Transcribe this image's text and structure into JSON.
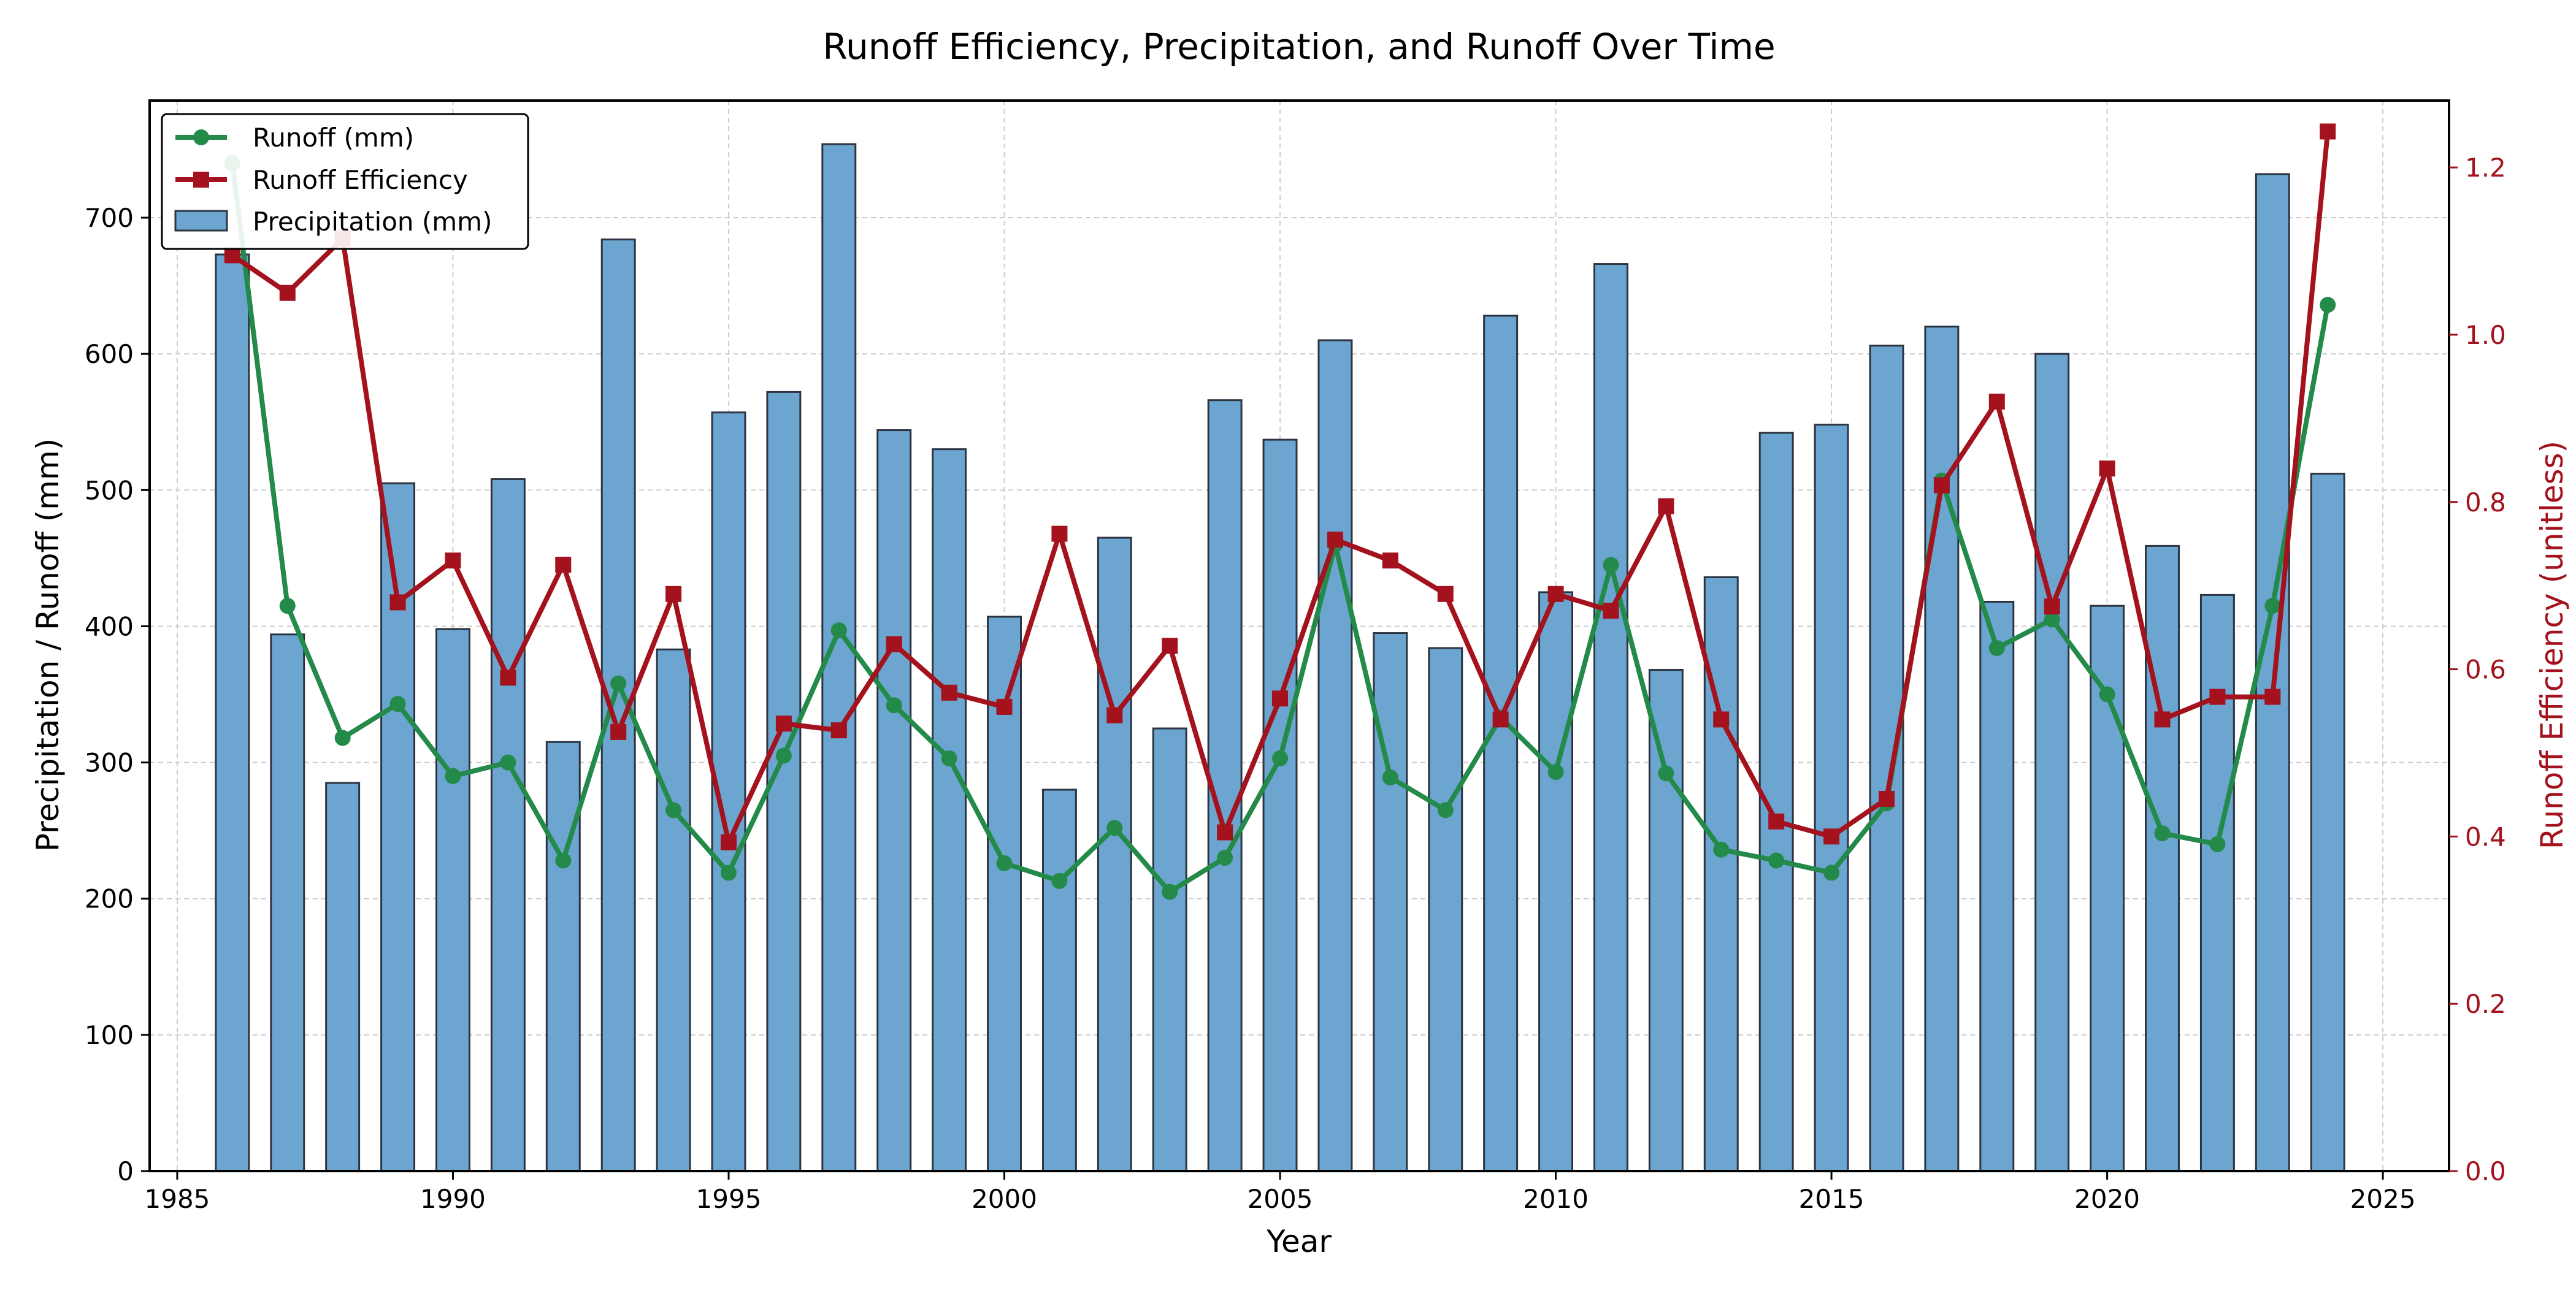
{
  "chart_data": {
    "type": "bar",
    "title": "Runoff Efficiency, Precipitation, and Runoff Over Time",
    "xlabel": "Year",
    "ylabel": "Precipitation / Runoff (mm)",
    "y2label": "Runoff Efficiency (unitless)",
    "xlim": [
      1984.5,
      2026.2
    ],
    "ylim": [
      0,
      786
    ],
    "y2lim": [
      0,
      1.28
    ],
    "xticks": [
      1985,
      1990,
      1995,
      2000,
      2005,
      2010,
      2015,
      2020,
      2025
    ],
    "yticks": [
      0,
      100,
      200,
      300,
      400,
      500,
      600,
      700
    ],
    "y2ticks": [
      0.0,
      0.2,
      0.4,
      0.6,
      0.8,
      1.0,
      1.2
    ],
    "grid": true,
    "legend_position": "top-left",
    "x": [
      1986,
      1987,
      1988,
      1989,
      1990,
      1991,
      1992,
      1993,
      1994,
      1995,
      1996,
      1997,
      1998,
      1999,
      2000,
      2001,
      2002,
      2003,
      2004,
      2005,
      2006,
      2007,
      2008,
      2009,
      2010,
      2011,
      2012,
      2013,
      2014,
      2015,
      2016,
      2017,
      2018,
      2019,
      2020,
      2021,
      2022,
      2023,
      2024
    ],
    "series": [
      {
        "name": "Precipitation (mm)",
        "type": "bar",
        "axis": "left",
        "color": "#6ba5d0",
        "values": [
          673,
          394,
          285,
          505,
          398,
          508,
          315,
          684,
          383,
          557,
          572,
          754,
          544,
          530,
          407,
          280,
          465,
          325,
          566,
          537,
          610,
          395,
          384,
          628,
          425,
          666,
          368,
          436,
          542,
          548,
          606,
          620,
          418,
          600,
          415,
          459,
          423,
          732,
          512
        ]
      },
      {
        "name": "Runoff (mm)",
        "type": "line",
        "axis": "left",
        "marker": "circle",
        "color": "#238a4a",
        "values": [
          740,
          415,
          318,
          343,
          290,
          300,
          228,
          358,
          265,
          219,
          305,
          397,
          342,
          303,
          226,
          213,
          252,
          205,
          230,
          303,
          460,
          289,
          265,
          333,
          293,
          445,
          292,
          236,
          228,
          219,
          270,
          507,
          384,
          405,
          350,
          248,
          240,
          415,
          636
        ]
      },
      {
        "name": "Runoff Efficiency",
        "type": "line",
        "axis": "right",
        "marker": "square",
        "color": "#a3121d",
        "values": [
          1.095,
          1.05,
          1.115,
          0.68,
          0.73,
          0.59,
          0.725,
          0.525,
          0.69,
          0.393,
          0.535,
          0.527,
          0.63,
          0.572,
          0.555,
          0.762,
          0.545,
          0.628,
          0.405,
          0.565,
          0.755,
          0.73,
          0.69,
          0.54,
          0.69,
          0.67,
          0.795,
          0.54,
          0.418,
          0.4,
          0.445,
          0.82,
          0.92,
          0.675,
          0.84,
          0.54,
          0.567,
          0.567,
          1.243
        ]
      }
    ],
    "legend": [
      "Runoff (mm)",
      "Runoff Efficiency",
      "Precipitation (mm)"
    ]
  }
}
